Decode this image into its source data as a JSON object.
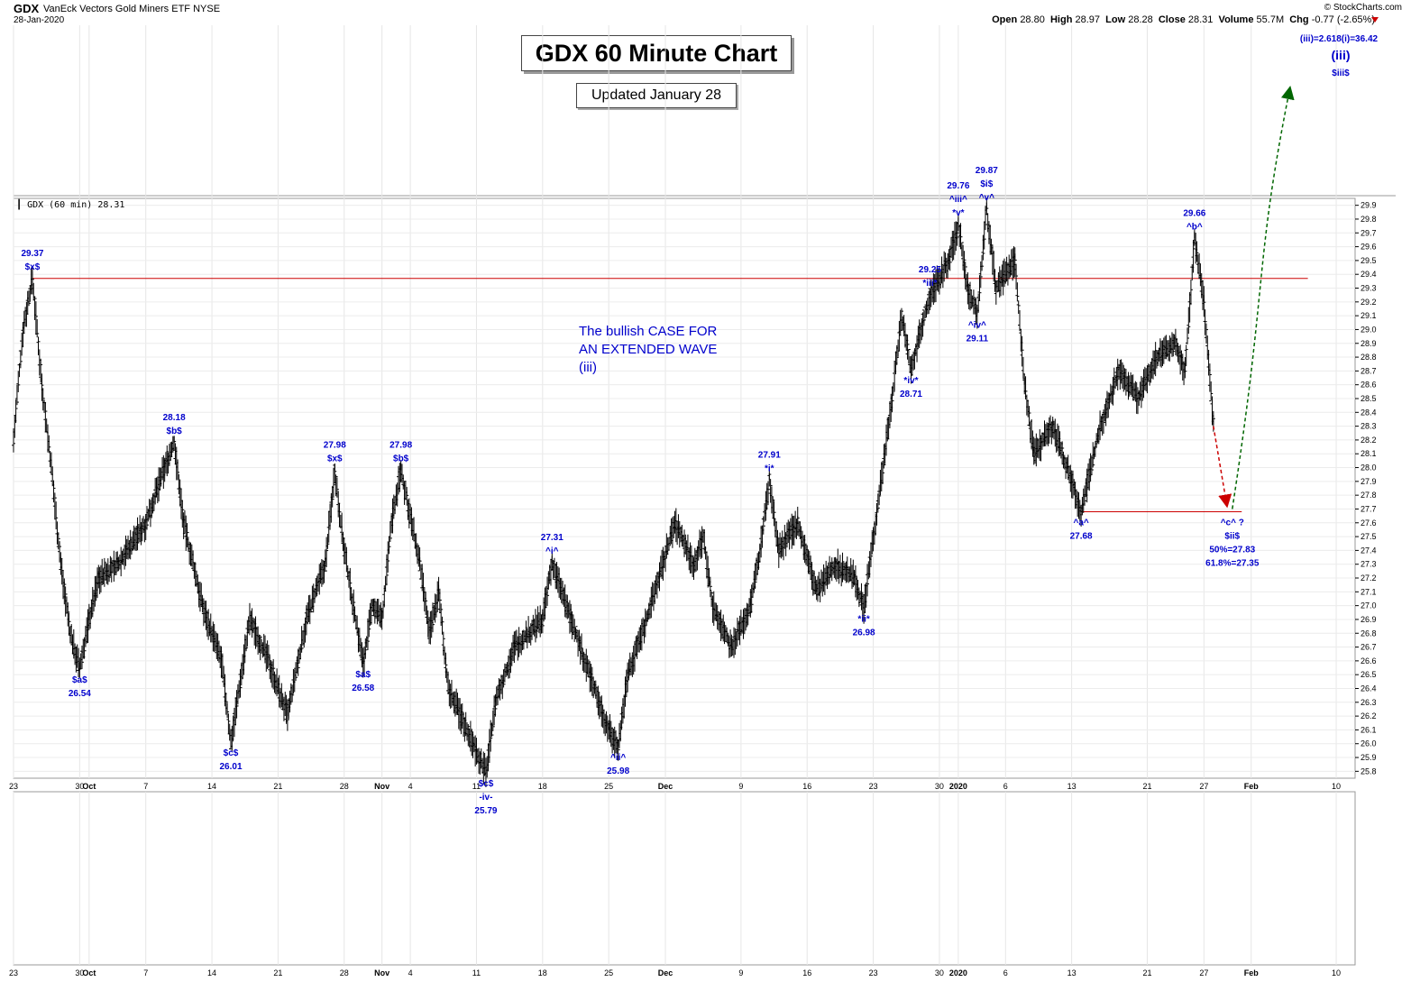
{
  "header": {
    "symbol": "GDX",
    "name": "VanEck Vectors Gold Miners ETF",
    "exchange": "NYSE",
    "date": "28-Jan-2020",
    "brand": "© StockCharts.com",
    "open_label": "Open",
    "open": "28.80",
    "high_label": "High",
    "high": "28.97",
    "low_label": "Low",
    "low": "28.28",
    "close_label": "Close",
    "close": "28.31",
    "volume_label": "Volume",
    "volume": "55.7M",
    "chg_label": "Chg",
    "chg": "-0.77 (-2.65%)"
  },
  "title": "GDX 60 Minute Chart",
  "updated": "Updated January 28",
  "legend": "GDX (60 min) 28.31",
  "thesis": [
    "The bullish CASE FOR",
    "AN EXTENDED WAVE",
    "(iii)"
  ],
  "target_note": "(iii)=2.618(i)=36.42",
  "colors": {
    "price": "#000000",
    "labels": "#0000cc",
    "resistance": "#cc0000",
    "projection_up": "#006600",
    "projection_down": "#cc0000"
  },
  "chart_data": {
    "type": "ohlc-bar",
    "ylim": [
      25.75,
      29.95
    ],
    "y_ticks": [
      25.8,
      25.9,
      26.0,
      26.1,
      26.2,
      26.3,
      26.4,
      26.5,
      26.6,
      26.7,
      26.8,
      26.9,
      27.0,
      27.1,
      27.2,
      27.3,
      27.4,
      27.5,
      27.6,
      27.7,
      27.8,
      27.9,
      28.0,
      28.1,
      28.2,
      28.3,
      28.4,
      28.5,
      28.6,
      28.7,
      28.8,
      28.9,
      29.0,
      29.1,
      29.2,
      29.3,
      29.4,
      29.5,
      29.6,
      29.7,
      29.8,
      29.9
    ],
    "x_range": [
      "2019-09-23",
      "2020-02-12"
    ],
    "x_ticks": [
      {
        "label": "23",
        "date": "2019-09-23"
      },
      {
        "label": "30",
        "date": "2019-09-30"
      },
      {
        "label": "Oct",
        "date": "2019-10-01",
        "bold": true
      },
      {
        "label": "7",
        "date": "2019-10-07"
      },
      {
        "label": "14",
        "date": "2019-10-14"
      },
      {
        "label": "21",
        "date": "2019-10-21"
      },
      {
        "label": "28",
        "date": "2019-10-28"
      },
      {
        "label": "Nov",
        "date": "2019-11-01",
        "bold": true
      },
      {
        "label": "4",
        "date": "2019-11-04"
      },
      {
        "label": "11",
        "date": "2019-11-11"
      },
      {
        "label": "18",
        "date": "2019-11-18"
      },
      {
        "label": "25",
        "date": "2019-11-25"
      },
      {
        "label": "Dec",
        "date": "2019-12-01",
        "bold": true
      },
      {
        "label": "9",
        "date": "2019-12-09"
      },
      {
        "label": "16",
        "date": "2019-12-16"
      },
      {
        "label": "23",
        "date": "2019-12-23"
      },
      {
        "label": "30",
        "date": "2019-12-30"
      },
      {
        "label": "2020",
        "date": "2020-01-01",
        "bold": true
      },
      {
        "label": "6",
        "date": "2020-01-06"
      },
      {
        "label": "13",
        "date": "2020-01-13"
      },
      {
        "label": "21",
        "date": "2020-01-21"
      },
      {
        "label": "27",
        "date": "2020-01-27"
      },
      {
        "label": "Feb",
        "date": "2020-02-01",
        "bold": true
      },
      {
        "label": "10",
        "date": "2020-02-10"
      }
    ],
    "price_path": [
      [
        "2019-09-23",
        28.2
      ],
      [
        "2019-09-24",
        29.0
      ],
      [
        "2019-09-25",
        29.37
      ],
      [
        "2019-09-26",
        28.6
      ],
      [
        "2019-09-27",
        28.0
      ],
      [
        "2019-09-28",
        27.3
      ],
      [
        "2019-09-29",
        26.8
      ],
      [
        "2019-09-30",
        26.54
      ],
      [
        "2019-10-01",
        26.9
      ],
      [
        "2019-10-02",
        27.2
      ],
      [
        "2019-10-04",
        27.3
      ],
      [
        "2019-10-07",
        27.6
      ],
      [
        "2019-10-09",
        28.0
      ],
      [
        "2019-10-10",
        28.18
      ],
      [
        "2019-10-11",
        27.6
      ],
      [
        "2019-10-13",
        27.0
      ],
      [
        "2019-10-15",
        26.6
      ],
      [
        "2019-10-16",
        26.01
      ],
      [
        "2019-10-18",
        26.9
      ],
      [
        "2019-10-20",
        26.6
      ],
      [
        "2019-10-22",
        26.2
      ],
      [
        "2019-10-24",
        26.9
      ],
      [
        "2019-10-26",
        27.3
      ],
      [
        "2019-10-27",
        27.98
      ],
      [
        "2019-10-28",
        27.4
      ],
      [
        "2019-10-30",
        26.58
      ],
      [
        "2019-10-31",
        27.0
      ],
      [
        "2019-11-01",
        26.9
      ],
      [
        "2019-11-02",
        27.6
      ],
      [
        "2019-11-03",
        27.98
      ],
      [
        "2019-11-05",
        27.3
      ],
      [
        "2019-11-06",
        26.8
      ],
      [
        "2019-11-07",
        27.1
      ],
      [
        "2019-11-08",
        26.4
      ],
      [
        "2019-11-10",
        26.1
      ],
      [
        "2019-11-12",
        25.79
      ],
      [
        "2019-11-13",
        26.3
      ],
      [
        "2019-11-15",
        26.7
      ],
      [
        "2019-11-18",
        26.9
      ],
      [
        "2019-11-19",
        27.31
      ],
      [
        "2019-11-21",
        26.9
      ],
      [
        "2019-11-23",
        26.5
      ],
      [
        "2019-11-25",
        26.1
      ],
      [
        "2019-11-26",
        25.98
      ],
      [
        "2019-11-27",
        26.5
      ],
      [
        "2019-11-29",
        26.9
      ],
      [
        "2019-12-02",
        27.6
      ],
      [
        "2019-12-04",
        27.3
      ],
      [
        "2019-12-05",
        27.5
      ],
      [
        "2019-12-06",
        27.0
      ],
      [
        "2019-12-08",
        26.7
      ],
      [
        "2019-12-10",
        27.0
      ],
      [
        "2019-12-11",
        27.4
      ],
      [
        "2019-12-12",
        27.91
      ],
      [
        "2019-12-13",
        27.4
      ],
      [
        "2019-12-15",
        27.6
      ],
      [
        "2019-12-17",
        27.1
      ],
      [
        "2019-12-19",
        27.3
      ],
      [
        "2019-12-21",
        27.2
      ],
      [
        "2019-12-22",
        26.98
      ],
      [
        "2019-12-23",
        27.5
      ],
      [
        "2019-12-24",
        28.0
      ],
      [
        "2019-12-25",
        28.5
      ],
      [
        "2019-12-26",
        29.1
      ],
      [
        "2019-12-27",
        28.71
      ],
      [
        "2019-12-28",
        29.0
      ],
      [
        "2019-12-29",
        29.25
      ],
      [
        "2019-12-31",
        29.5
      ],
      [
        "2020-01-01",
        29.76
      ],
      [
        "2020-01-02",
        29.3
      ],
      [
        "2020-01-03",
        29.11
      ],
      [
        "2020-01-04",
        29.87
      ],
      [
        "2020-01-05",
        29.3
      ],
      [
        "2020-01-07",
        29.5
      ],
      [
        "2020-01-08",
        28.6
      ],
      [
        "2020-01-09",
        28.1
      ],
      [
        "2020-01-11",
        28.3
      ],
      [
        "2020-01-13",
        27.9
      ],
      [
        "2020-01-14",
        27.68
      ],
      [
        "2020-01-16",
        28.3
      ],
      [
        "2020-01-18",
        28.7
      ],
      [
        "2020-01-20",
        28.5
      ],
      [
        "2020-01-22",
        28.8
      ],
      [
        "2020-01-24",
        28.9
      ],
      [
        "2020-01-25",
        28.7
      ],
      [
        "2020-01-26",
        29.66
      ],
      [
        "2020-01-27",
        29.2
      ],
      [
        "2020-01-28",
        28.31
      ]
    ],
    "resistance_line": {
      "price": 29.37,
      "from": "2019-09-25",
      "to": "2020-02-07"
    },
    "support_line": {
      "price": 27.68,
      "from": "2020-01-14",
      "to": "2020-01-31"
    },
    "projection": [
      {
        "from": [
          "2020-01-28",
          28.3
        ],
        "to": [
          "2020-01-30",
          27.7
        ],
        "color": "down"
      },
      {
        "from": [
          "2020-01-30",
          27.7
        ],
        "to": [
          "2020-02-05",
          36.42
        ],
        "color": "up"
      }
    ],
    "annotations": [
      {
        "date": "2019-09-25",
        "price": 29.37,
        "pos": "above",
        "lines": [
          "29.37",
          "$x$"
        ]
      },
      {
        "date": "2019-09-30",
        "price": 26.54,
        "pos": "below",
        "lines": [
          "$a$",
          "26.54"
        ]
      },
      {
        "date": "2019-10-10",
        "price": 28.18,
        "pos": "above",
        "lines": [
          "28.18",
          "$b$"
        ]
      },
      {
        "date": "2019-10-16",
        "price": 26.01,
        "pos": "below",
        "lines": [
          "$c$",
          "26.01"
        ]
      },
      {
        "date": "2019-10-27",
        "price": 27.98,
        "pos": "above",
        "lines": [
          "27.98",
          "$x$"
        ]
      },
      {
        "date": "2019-10-30",
        "price": 26.58,
        "pos": "below",
        "lines": [
          "$a$",
          "26.58"
        ]
      },
      {
        "date": "2019-11-03",
        "price": 27.98,
        "pos": "above",
        "lines": [
          "27.98",
          "$b$"
        ]
      },
      {
        "date": "2019-11-12",
        "price": 25.79,
        "pos": "below",
        "lines": [
          "$c$",
          "-iv-",
          "25.79"
        ]
      },
      {
        "date": "2019-11-19",
        "price": 27.31,
        "pos": "above",
        "lines": [
          "27.31",
          "^i^"
        ]
      },
      {
        "date": "2019-11-26",
        "price": 25.98,
        "pos": "below",
        "lines": [
          "^ii^",
          "25.98"
        ]
      },
      {
        "date": "2019-12-12",
        "price": 27.91,
        "pos": "above",
        "lines": [
          "27.91",
          "*i*"
        ]
      },
      {
        "date": "2019-12-22",
        "price": 26.98,
        "pos": "below",
        "lines": [
          "*ii*",
          "26.98"
        ]
      },
      {
        "date": "2019-12-29",
        "price": 29.25,
        "pos": "above",
        "lines": [
          "29.25",
          "*iii*"
        ]
      },
      {
        "date": "2019-12-27",
        "price": 28.71,
        "pos": "below",
        "lines": [
          "*iv*",
          "28.71"
        ]
      },
      {
        "date": "2020-01-01",
        "price": 29.76,
        "pos": "above",
        "lines": [
          "29.76",
          "^iii^",
          "*v*"
        ]
      },
      {
        "date": "2020-01-03",
        "price": 29.11,
        "pos": "below",
        "lines": [
          "^iv^",
          "29.11"
        ]
      },
      {
        "date": "2020-01-04",
        "price": 29.87,
        "pos": "above",
        "lines": [
          "29.87",
          "$i$",
          "^v^"
        ]
      },
      {
        "date": "2020-01-14",
        "price": 27.68,
        "pos": "below",
        "lines": [
          "^a^",
          "27.68"
        ]
      },
      {
        "date": "2020-01-26",
        "price": 29.66,
        "pos": "above",
        "lines": [
          "29.66",
          "^b^"
        ]
      },
      {
        "date": "2020-01-30",
        "price": 27.68,
        "pos": "below",
        "lines": [
          "^c^  ?",
          "$ii$",
          "50%=27.83",
          "61.8%=27.35"
        ]
      }
    ],
    "target_labels": [
      "(iii)",
      "$iii$"
    ]
  }
}
